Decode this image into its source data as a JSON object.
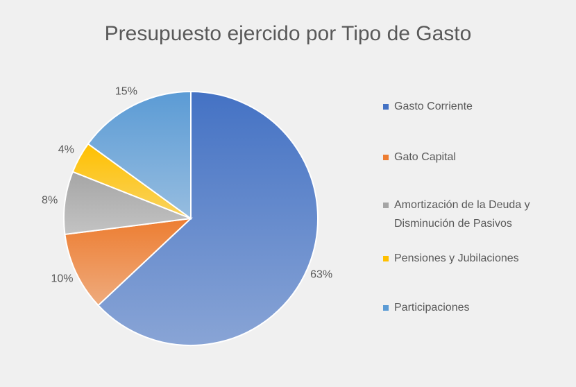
{
  "chart_data": {
    "type": "pie",
    "title": "Presupuesto ejercido por Tipo de Gasto",
    "categories": [
      "Gasto Corriente",
      "Gato Capital",
      "Amortización de la Deuda y Disminución de Pasivos",
      "Pensiones y Jubilaciones",
      "Participaciones"
    ],
    "values": [
      63,
      10,
      8,
      4,
      15
    ],
    "value_labels": [
      "63%",
      "10%",
      "8%",
      "4%",
      "15%"
    ],
    "colors": [
      "#4472c4",
      "#ed7d31",
      "#a5a5a5",
      "#ffc000",
      "#5b9bd5"
    ],
    "legend": "right"
  }
}
